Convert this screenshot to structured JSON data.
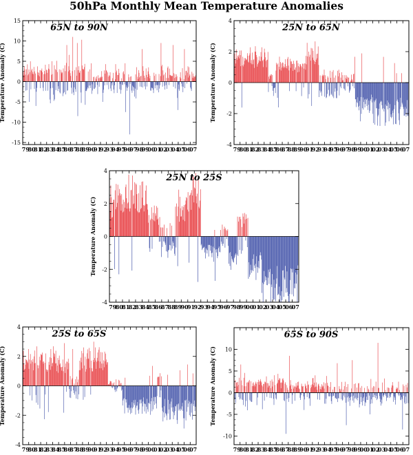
{
  "title": "50hPa Monthly Mean Temperature Anomalies",
  "colors": {
    "positive": "#e8464a",
    "negative": "#4a5aac",
    "axis": "#000000"
  },
  "chart_data": [
    {
      "type": "bar",
      "title": "65N to 90N",
      "ylabel": "Temperature Anomaly (C)",
      "ylim": [
        -15.5,
        15
      ],
      "yticks": [
        -15,
        -10,
        -5,
        0,
        5,
        10,
        15
      ],
      "x_tick_labels": [
        "79",
        "80",
        "81",
        "82",
        "83",
        "84",
        "85",
        "86",
        "87",
        "88",
        "89",
        "90",
        "91",
        "92",
        "93",
        "94",
        "95",
        "96",
        "97",
        "98",
        "99",
        "00",
        "01",
        "02",
        "03",
        "04",
        "05",
        "06",
        "07"
      ],
      "x_start_year": 1979,
      "x_end_year": 2007,
      "segments": [
        {
          "s": 1979.0,
          "e": 1983.5,
          "base": 1.2,
          "amp": 2.2,
          "pos": 0.7
        },
        {
          "s": 1983.5,
          "e": 1990.0,
          "base": 1.5,
          "amp": 3.0,
          "pos": 0.62
        },
        {
          "s": 1990.0,
          "e": 1997.5,
          "base": 0.2,
          "amp": 2.4,
          "pos": 0.48
        },
        {
          "s": 1997.5,
          "e": 2002.5,
          "base": -0.5,
          "amp": 2.6,
          "pos": 0.45
        },
        {
          "s": 2002.5,
          "e": 2007.6,
          "base": 0.5,
          "amp": 2.4,
          "pos": 0.55
        }
      ],
      "peaks": [
        {
          "x": 1986.3,
          "v": 9.0
        },
        {
          "x": 1987.3,
          "v": 11.0
        },
        {
          "x": 1988.1,
          "v": 9.5
        },
        {
          "x": 1988.8,
          "v": 10.3
        },
        {
          "x": 1983.3,
          "v": 4.3
        },
        {
          "x": 1990.4,
          "v": 4.5
        },
        {
          "x": 1992.8,
          "v": 4.3
        },
        {
          "x": 1994.5,
          "v": 4.3
        },
        {
          "x": 1996.1,
          "v": 4.5
        },
        {
          "x": 1998.9,
          "v": 8.0
        },
        {
          "x": 2000.0,
          "v": 3.5
        },
        {
          "x": 2002.1,
          "v": 9.5
        },
        {
          "x": 2004.1,
          "v": 9.0
        },
        {
          "x": 2006.0,
          "v": 8.0
        },
        {
          "x": 1988.2,
          "v": -8.5
        },
        {
          "x": 1996.8,
          "v": -13.0
        },
        {
          "x": 1996.2,
          "v": -7.5
        },
        {
          "x": 1980.1,
          "v": -5.0
        },
        {
          "x": 1981.2,
          "v": -6.0
        },
        {
          "x": 2004.9,
          "v": -7.0
        },
        {
          "x": 1992.3,
          "v": -5.0
        }
      ]
    },
    {
      "type": "bar",
      "title": "25N to 65N",
      "ylabel": "Temperature Anomaly (C)",
      "ylim": [
        -4,
        4
      ],
      "yticks": [
        -4,
        -2,
        0,
        2,
        4
      ],
      "x_tick_labels": [
        "79",
        "80",
        "81",
        "82",
        "83",
        "84",
        "85",
        "86",
        "87",
        "88",
        "89",
        "90",
        "91",
        "92",
        "93",
        "94",
        "95",
        "96",
        "97",
        "98",
        "99",
        "00",
        "01",
        "02",
        "03",
        "04",
        "05",
        "06",
        "07"
      ],
      "x_start_year": 1979,
      "x_end_year": 2007,
      "segments": [
        {
          "s": 1979.0,
          "e": 1984.6,
          "base": 1.15,
          "amp": 0.45,
          "pos": 0.97
        },
        {
          "s": 1984.6,
          "e": 1986.0,
          "base": 0.25,
          "amp": 0.6,
          "pos": 0.6
        },
        {
          "s": 1986.0,
          "e": 1989.3,
          "base": 0.9,
          "amp": 0.4,
          "pos": 0.95
        },
        {
          "s": 1989.3,
          "e": 1990.9,
          "base": 0.7,
          "amp": 0.4,
          "pos": 0.9
        },
        {
          "s": 1990.9,
          "e": 1993.0,
          "base": 1.35,
          "amp": 0.45,
          "pos": 0.97
        },
        {
          "s": 1993.0,
          "e": 1996.5,
          "base": -0.35,
          "amp": 0.55,
          "pos": 0.3
        },
        {
          "s": 1996.5,
          "e": 1999.0,
          "base": -0.15,
          "amp": 0.5,
          "pos": 0.4
        },
        {
          "s": 1999.0,
          "e": 2002.0,
          "base": -0.95,
          "amp": 0.65,
          "pos": 0.08
        },
        {
          "s": 2002.0,
          "e": 2007.6,
          "base": -1.2,
          "amp": 0.75,
          "pos": 0.05
        }
      ],
      "peaks": [
        {
          "x": 1981.2,
          "v": 1.9
        },
        {
          "x": 1982.4,
          "v": 2.0
        },
        {
          "x": 1991.3,
          "v": 2.0
        },
        {
          "x": 1986.3,
          "v": -1.6
        },
        {
          "x": 1999.9,
          "v": -2.5
        },
        {
          "x": 2003.2,
          "v": -2.8
        },
        {
          "x": 2005.1,
          "v": -2.3
        },
        {
          "x": 2007.1,
          "v": -1.7
        }
      ]
    },
    {
      "type": "bar",
      "title": "25N to 25S",
      "ylabel": "Temperature Anomaly (C)",
      "ylim": [
        -4,
        4
      ],
      "yticks": [
        -4,
        -2,
        0,
        2,
        4
      ],
      "x_tick_labels": [
        "79",
        "80",
        "81",
        "82",
        "83",
        "84",
        "85",
        "86",
        "87",
        "88",
        "89",
        "90",
        "91",
        "92",
        "93",
        "94",
        "95",
        "96",
        "97",
        "98",
        "99",
        "00",
        "01",
        "02",
        "03",
        "04",
        "05",
        "06",
        "07"
      ],
      "x_start_year": 1979,
      "x_end_year": 2007,
      "segments": [
        {
          "s": 1979.0,
          "e": 1980.3,
          "base": 1.4,
          "amp": 0.8,
          "pos": 0.95
        },
        {
          "s": 1980.3,
          "e": 1984.7,
          "base": 1.6,
          "amp": 1.0,
          "pos": 0.95
        },
        {
          "s": 1984.7,
          "e": 1986.5,
          "base": 0.8,
          "amp": 0.8,
          "pos": 0.85
        },
        {
          "s": 1986.5,
          "e": 1987.8,
          "base": 0.2,
          "amp": 0.9,
          "pos": 0.55
        },
        {
          "s": 1987.8,
          "e": 1989.0,
          "base": -0.3,
          "amp": 0.7,
          "pos": 0.25
        },
        {
          "s": 1989.0,
          "e": 1991.3,
          "base": 1.1,
          "amp": 0.9,
          "pos": 0.9
        },
        {
          "s": 1991.3,
          "e": 1993.0,
          "base": 2.0,
          "amp": 0.9,
          "pos": 0.97
        },
        {
          "s": 1993.0,
          "e": 1996.0,
          "base": -0.5,
          "amp": 0.7,
          "pos": 0.12
        },
        {
          "s": 1996.0,
          "e": 1997.2,
          "base": 0.25,
          "amp": 0.5,
          "pos": 0.6
        },
        {
          "s": 1997.2,
          "e": 1999.0,
          "base": -0.9,
          "amp": 0.7,
          "pos": 0.1
        },
        {
          "s": 1999.0,
          "e": 2000.2,
          "base": 0.55,
          "amp": 0.6,
          "pos": 0.85
        },
        {
          "s": 2000.2,
          "e": 2002.3,
          "base": -1.1,
          "amp": 0.8,
          "pos": 0.0
        },
        {
          "s": 2002.3,
          "e": 2007.6,
          "base": -2.3,
          "amp": 0.9,
          "pos": 0.0
        }
      ],
      "peaks": [
        {
          "x": 1982.8,
          "v": 3.3
        },
        {
          "x": 1991.8,
          "v": 3.6
        },
        {
          "x": 1992.4,
          "v": 2.6
        },
        {
          "x": 1987.9,
          "v": -1.3
        },
        {
          "x": 1995.2,
          "v": -2.7
        },
        {
          "x": 2004.0,
          "v": -3.8
        },
        {
          "x": 2005.2,
          "v": -3.6
        },
        {
          "x": 2006.6,
          "v": -3.5
        },
        {
          "x": 1999.4,
          "v": 1.4
        }
      ]
    },
    {
      "type": "bar",
      "title": "25S to 65S",
      "ylabel": "Temperature Anomaly (C)",
      "ylim": [
        -4,
        4
      ],
      "yticks": [
        -4,
        -2,
        0,
        2,
        4
      ],
      "x_tick_labels": [
        "79",
        "80",
        "81",
        "82",
        "83",
        "84",
        "85",
        "86",
        "87",
        "88",
        "89",
        "90",
        "91",
        "92",
        "93",
        "94",
        "95",
        "96",
        "97",
        "98",
        "99",
        "00",
        "01",
        "02",
        "03",
        "04",
        "05",
        "06",
        "07"
      ],
      "x_start_year": 1979,
      "x_end_year": 2007,
      "segments": [
        {
          "s": 1979.0,
          "e": 1985.7,
          "base": 1.0,
          "amp": 0.9,
          "pos": 0.92
        },
        {
          "s": 1985.7,
          "e": 1986.7,
          "base": 0.7,
          "amp": 0.9,
          "pos": 0.8
        },
        {
          "s": 1986.7,
          "e": 1988.4,
          "base": -0.1,
          "amp": 0.7,
          "pos": 0.45
        },
        {
          "s": 1988.4,
          "e": 1993.2,
          "base": 1.1,
          "amp": 0.9,
          "pos": 0.93
        },
        {
          "s": 1993.2,
          "e": 1995.6,
          "base": 0.0,
          "amp": 0.4,
          "pos": 0.5
        },
        {
          "s": 1995.6,
          "e": 2001.5,
          "base": -0.85,
          "amp": 0.6,
          "pos": 0.05
        },
        {
          "s": 2001.5,
          "e": 2002.2,
          "base": 0.3,
          "amp": 0.5,
          "pos": 0.8
        },
        {
          "s": 2002.2,
          "e": 2007.6,
          "base": -1.0,
          "amp": 0.8,
          "pos": 0.03
        }
      ],
      "peaks": [
        {
          "x": 1983.7,
          "v": 2.5
        },
        {
          "x": 1985.9,
          "v": 2.9
        },
        {
          "x": 1990.8,
          "v": 3.0
        },
        {
          "x": 1987.3,
          "v": 2.5
        },
        {
          "x": 1998.3,
          "v": -1.9
        },
        {
          "x": 2003.5,
          "v": -2.3
        },
        {
          "x": 2005.9,
          "v": -2.9
        },
        {
          "x": 2007.3,
          "v": -2.3
        }
      ]
    },
    {
      "type": "bar",
      "title": "65S to 90S",
      "ylabel": "Temperature Anomaly (C)",
      "ylim": [
        -12,
        15
      ],
      "yticks": [
        -10,
        -5,
        0,
        5,
        10
      ],
      "x_tick_labels": [
        "79",
        "80",
        "81",
        "82",
        "83",
        "84",
        "85",
        "86",
        "87",
        "88",
        "89",
        "90",
        "91",
        "92",
        "93",
        "94",
        "95",
        "96",
        "97",
        "98",
        "99",
        "00",
        "01",
        "02",
        "03",
        "04",
        "05",
        "06",
        "07"
      ],
      "x_start_year": 1979,
      "x_end_year": 2007,
      "segments": [
        {
          "s": 1979.0,
          "e": 1987.5,
          "base": 1.0,
          "amp": 2.2,
          "pos": 0.7
        },
        {
          "s": 1987.5,
          "e": 1995.0,
          "base": 0.6,
          "amp": 2.0,
          "pos": 0.6
        },
        {
          "s": 1995.0,
          "e": 2001.0,
          "base": -0.6,
          "amp": 2.0,
          "pos": 0.35
        },
        {
          "s": 2001.0,
          "e": 2007.6,
          "base": -0.1,
          "amp": 2.4,
          "pos": 0.42
        }
      ],
      "peaks": [
        {
          "x": 1988.2,
          "v": 8.5
        },
        {
          "x": 1987.6,
          "v": -9.5
        },
        {
          "x": 2002.8,
          "v": 11.5
        },
        {
          "x": 1998.6,
          "v": 7.5
        },
        {
          "x": 1996.1,
          "v": 6.8
        },
        {
          "x": 1992.4,
          "v": 4.0
        },
        {
          "x": 2006.9,
          "v": -8.5
        },
        {
          "x": 1997.6,
          "v": -7.5
        },
        {
          "x": 2001.5,
          "v": -5.0
        },
        {
          "x": 1980.1,
          "v": 6.5
        },
        {
          "x": 1990.6,
          "v": -4.0
        }
      ]
    }
  ]
}
